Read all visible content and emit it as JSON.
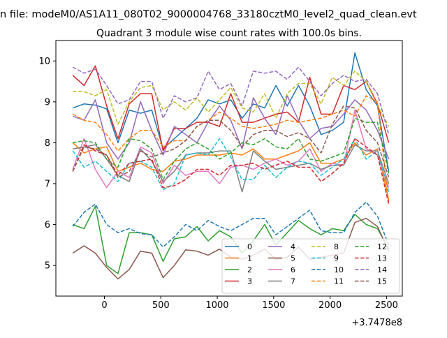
{
  "chart_data": {
    "type": "line",
    "suptitle": "n file: modeM0/AS1A11_080T02_9000004768_33180cztM0_level2_quad_clean.evt",
    "title": "Quadrant 3 module wise count rates with 100.0s bins.",
    "xlabel": "",
    "ylabel": "",
    "x_offset_label": "+3.7478e8",
    "xlim": [
      -430,
      2640
    ],
    "ylim": [
      4.25,
      10.5
    ],
    "xticks": [
      0,
      500,
      1000,
      1500,
      2000,
      2500
    ],
    "yticks": [
      5,
      6,
      7,
      8,
      9,
      10
    ],
    "grid": false,
    "legend": "lower-right",
    "x": [
      -280,
      -180,
      -80,
      20,
      120,
      220,
      320,
      420,
      520,
      620,
      720,
      820,
      920,
      1020,
      1120,
      1220,
      1320,
      1420,
      1520,
      1620,
      1720,
      1820,
      1920,
      2020,
      2120,
      2220,
      2320,
      2420,
      2520
    ],
    "series": [
      {
        "name": "0",
        "color": "#1f77b4",
        "dash": "solid",
        "values": [
          8.85,
          8.95,
          8.92,
          8.83,
          8.0,
          8.8,
          8.72,
          8.8,
          7.85,
          8.1,
          8.35,
          8.6,
          9.05,
          8.95,
          9.05,
          8.6,
          8.95,
          8.85,
          9.4,
          8.9,
          9.4,
          8.9,
          8.2,
          8.3,
          8.5,
          10.2,
          9.3,
          8.9,
          7.3
        ]
      },
      {
        "name": "1",
        "color": "#ff7f0e",
        "dash": "solid",
        "values": [
          8.0,
          7.75,
          7.85,
          7.9,
          7.3,
          7.4,
          7.5,
          7.35,
          7.3,
          7.55,
          7.6,
          7.7,
          7.7,
          7.7,
          7.75,
          7.7,
          7.85,
          7.6,
          7.6,
          7.7,
          7.8,
          8.0,
          7.5,
          7.5,
          7.6,
          8.0,
          7.7,
          7.85,
          6.6
        ]
      },
      {
        "name": "2",
        "color": "#2ca02c",
        "dash": "solid",
        "values": [
          6.0,
          5.9,
          6.45,
          5.0,
          4.8,
          5.8,
          5.8,
          5.75,
          5.1,
          5.65,
          5.7,
          5.95,
          5.6,
          5.85,
          5.7,
          5.3,
          5.6,
          6.0,
          5.5,
          5.8,
          6.1,
          5.9,
          5.75,
          5.9,
          5.85,
          6.25,
          6.0,
          5.9,
          5.4
        ]
      },
      {
        "name": "3",
        "color": "#d62728",
        "dash": "solid",
        "values": [
          9.65,
          9.4,
          9.88,
          8.9,
          8.1,
          8.95,
          9.2,
          9.2,
          7.8,
          8.35,
          8.35,
          8.5,
          8.5,
          8.4,
          9.2,
          8.5,
          8.5,
          8.6,
          8.7,
          8.75,
          8.5,
          9.6,
          8.7,
          8.7,
          9.4,
          9.3,
          9.5,
          8.95,
          8.0
        ]
      },
      {
        "name": "4",
        "color": "#9467bd",
        "dash": "solid",
        "values": [
          8.65,
          8.55,
          9.05,
          8.0,
          7.6,
          8.0,
          9.0,
          8.3,
          7.7,
          8.4,
          8.2,
          8.0,
          8.5,
          8.9,
          8.55,
          7.85,
          9.1,
          8.6,
          8.2,
          9.15,
          8.55,
          8.1,
          8.35,
          8.4,
          8.7,
          9.05,
          8.8,
          8.3,
          7.6
        ]
      },
      {
        "name": "5",
        "color": "#8c564b",
        "dash": "solid",
        "values": [
          5.3,
          5.48,
          5.3,
          4.95,
          4.67,
          4.9,
          5.35,
          5.3,
          4.7,
          5.0,
          5.38,
          5.35,
          5.25,
          5.4,
          5.2,
          5.15,
          5.25,
          5.4,
          5.15,
          5.2,
          5.45,
          5.15,
          5.2,
          5.25,
          5.3,
          6.05,
          6.15,
          5.95,
          5.35
        ]
      },
      {
        "name": "6",
        "color": "#e377c2",
        "dash": "solid",
        "values": [
          7.35,
          8.1,
          7.35,
          6.9,
          7.3,
          7.15,
          7.9,
          7.75,
          7.0,
          7.45,
          7.2,
          7.3,
          7.3,
          7.0,
          7.4,
          7.45,
          7.35,
          7.5,
          7.6,
          7.45,
          7.55,
          7.85,
          7.3,
          7.5,
          7.45,
          8.8,
          7.85,
          7.7,
          6.9
        ]
      },
      {
        "name": "7",
        "color": "#7f7f7f",
        "dash": "solid",
        "values": [
          7.85,
          7.9,
          7.95,
          7.6,
          7.2,
          7.05,
          7.85,
          7.55,
          7.05,
          7.3,
          7.7,
          7.75,
          7.75,
          7.8,
          7.8,
          6.8,
          7.8,
          7.55,
          7.35,
          7.4,
          7.45,
          7.5,
          7.35,
          7.45,
          7.45,
          7.95,
          7.8,
          7.8,
          7.0
        ]
      },
      {
        "name": "8",
        "color": "#bcbd22",
        "dash": "dashed",
        "values": [
          9.25,
          9.25,
          9.15,
          9.3,
          8.45,
          9.0,
          9.35,
          9.4,
          8.8,
          9.0,
          8.8,
          9.1,
          8.75,
          9.05,
          9.35,
          8.85,
          8.75,
          9.2,
          8.6,
          9.2,
          9.45,
          9.45,
          8.95,
          9.6,
          9.4,
          9.75,
          9.5,
          8.9,
          8.4
        ]
      },
      {
        "name": "9",
        "color": "#17becf",
        "dash": "dashed",
        "values": [
          7.8,
          7.4,
          7.55,
          7.3,
          7.05,
          7.5,
          7.55,
          7.4,
          6.85,
          7.0,
          7.7,
          7.75,
          7.7,
          8.1,
          7.65,
          7.1,
          7.1,
          7.45,
          7.15,
          7.4,
          7.55,
          7.5,
          7.2,
          7.4,
          7.6,
          8.1,
          7.6,
          7.8,
          6.8
        ]
      },
      {
        "name": "10",
        "color": "#1f77b4",
        "dash": "dashed",
        "values": [
          5.95,
          6.3,
          6.5,
          6.0,
          5.8,
          5.9,
          5.78,
          5.75,
          5.45,
          5.7,
          6.0,
          5.85,
          6.1,
          5.95,
          5.85,
          6.0,
          6.15,
          6.15,
          5.75,
          5.95,
          6.15,
          6.35,
          5.85,
          5.8,
          5.8,
          6.3,
          6.55,
          6.2,
          5.5
        ]
      },
      {
        "name": "11",
        "color": "#ff7f0e",
        "dash": "dashed",
        "values": [
          8.7,
          8.55,
          8.5,
          8.2,
          7.8,
          8.1,
          8.3,
          8.3,
          7.9,
          8.05,
          8.05,
          8.4,
          8.55,
          8.75,
          8.6,
          8.4,
          8.35,
          8.4,
          8.45,
          8.55,
          8.5,
          8.55,
          8.6,
          8.7,
          8.8,
          8.65,
          9.15,
          9.0,
          6.5
        ]
      },
      {
        "name": "12",
        "color": "#2ca02c",
        "dash": "dashed",
        "values": [
          8.0,
          8.05,
          8.0,
          7.6,
          7.4,
          8.1,
          8.05,
          7.85,
          7.1,
          7.55,
          7.85,
          8.0,
          7.85,
          7.6,
          7.75,
          8.0,
          7.95,
          8.1,
          7.9,
          7.85,
          8.1,
          7.6,
          7.55,
          7.65,
          7.75,
          8.6,
          8.5,
          8.5,
          7.25
        ]
      },
      {
        "name": "13",
        "color": "#d62728",
        "dash": "dashed",
        "values": [
          7.3,
          7.95,
          7.8,
          7.7,
          7.2,
          7.5,
          7.55,
          7.6,
          6.9,
          6.95,
          7.1,
          7.35,
          7.35,
          7.2,
          7.45,
          7.45,
          7.5,
          7.35,
          7.45,
          7.55,
          7.4,
          7.4,
          7.05,
          7.25,
          7.5,
          8.1,
          7.9,
          7.7,
          6.5
        ]
      },
      {
        "name": "14",
        "color": "#9467bd",
        "dash": "dashed",
        "values": [
          9.85,
          9.7,
          9.8,
          9.4,
          8.95,
          9.05,
          9.5,
          9.5,
          8.6,
          9.15,
          9.0,
          9.1,
          9.75,
          9.3,
          9.45,
          8.9,
          9.75,
          9.7,
          9.75,
          9.55,
          9.85,
          9.5,
          9.15,
          9.45,
          9.65,
          9.5,
          9.55,
          9.2,
          8.2
        ]
      },
      {
        "name": "15",
        "color": "#8c564b",
        "dash": "dashed",
        "values": [
          7.3,
          7.9,
          7.85,
          7.7,
          7.15,
          7.3,
          7.8,
          7.65,
          7.75,
          7.85,
          8.05,
          8.4,
          8.55,
          8.55,
          8.3,
          7.9,
          8.2,
          8.3,
          8.3,
          8.15,
          8.25,
          8.1,
          7.75,
          8.45,
          8.9,
          8.85,
          8.3,
          8.0,
          7.15
        ]
      }
    ]
  }
}
